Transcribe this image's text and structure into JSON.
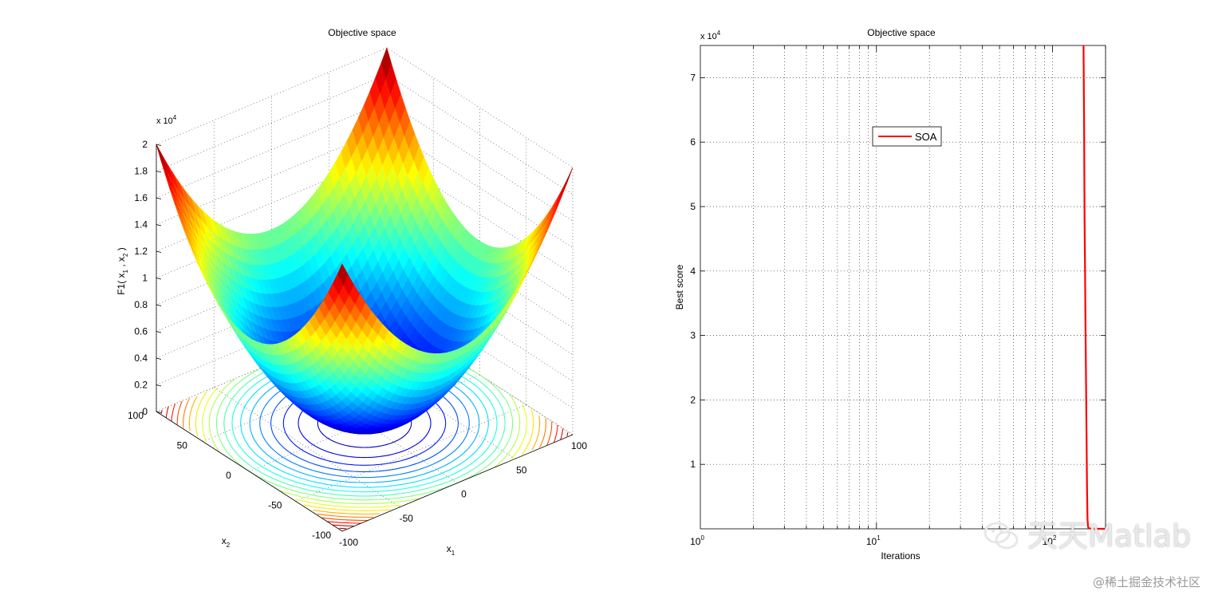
{
  "chart_data": [
    {
      "type": "surface",
      "title": "Objective space",
      "xlabel": "x",
      "xlabel_sub": "1",
      "ylabel": "x",
      "ylabel_sub": "2",
      "zlabel": "F1( x , x )",
      "zlabel_parts": [
        "F1( x",
        "1",
        " , x",
        "2",
        " )"
      ],
      "x_range": [
        -100,
        100
      ],
      "y_range": [
        -100,
        100
      ],
      "z_range": [
        0,
        20000
      ],
      "z_multiplier": "x 10",
      "z_exponent": "4",
      "x_ticks": [
        -100,
        -50,
        0,
        50,
        100
      ],
      "y_ticks": [
        -100,
        -50,
        0,
        50,
        100
      ],
      "z_ticks": [
        0,
        0.2,
        0.4,
        0.6,
        0.8,
        1,
        1.2,
        1.4,
        1.6,
        1.8,
        2
      ],
      "contour_levels": [
        1000,
        2000,
        3000,
        4000,
        5000,
        6000,
        7000,
        8000,
        9000,
        10000,
        11000,
        12000,
        13000,
        14000,
        15000,
        16000,
        17000,
        18000,
        19000
      ],
      "colormap": "jet",
      "grid": true
    },
    {
      "type": "line",
      "title": "Objective space",
      "xlabel": "Iterations",
      "ylabel": "Best score",
      "x_scale": "log",
      "xlim": [
        1,
        200
      ],
      "ylim": [
        0,
        75000
      ],
      "x_ticks": [
        "10",
        "10",
        "10"
      ],
      "x_tick_exponents": [
        "0",
        "1",
        "2"
      ],
      "y_ticks": [
        1,
        2,
        3,
        4,
        5,
        6,
        7
      ],
      "y_multiplier": "x 10",
      "y_exponent": "4",
      "grid": true,
      "legend_position": "upper-center",
      "series": [
        {
          "name": "SOA",
          "color": "#ff0000",
          "x": [
            150,
            150.5,
            151,
            151.5,
            152,
            153,
            154,
            155,
            156,
            157,
            158,
            159,
            160,
            162,
            170,
            185,
            200
          ],
          "y": [
            75000,
            70000,
            63000,
            55000,
            48000,
            40000,
            31000,
            22000,
            14000,
            6000,
            1500,
            400,
            120,
            60,
            20,
            5,
            2
          ]
        }
      ]
    }
  ],
  "watermark": {
    "text": "天天Matlab",
    "source": "@稀土掘金技术社区",
    "icon": "wechat-icon"
  }
}
